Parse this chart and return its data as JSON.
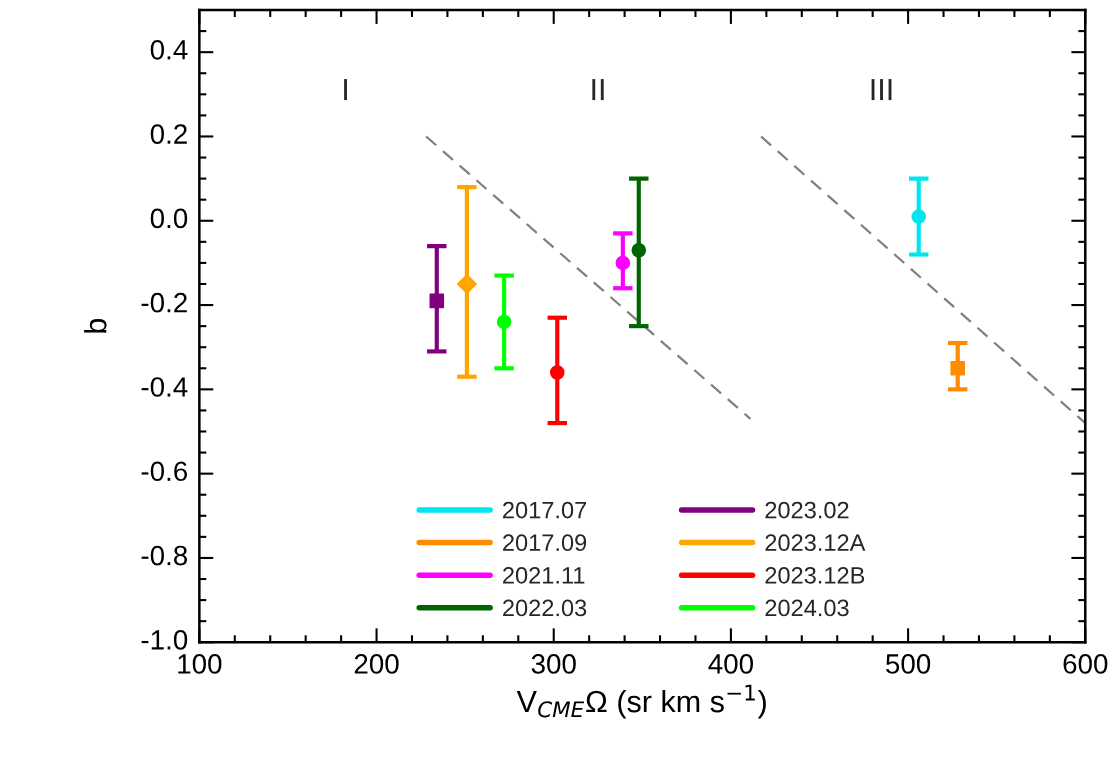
{
  "chart_data": {
    "type": "scatter",
    "xlabel": "V$_{CME}$Ω (sr km s$^{−1}$)",
    "ylabel": "b",
    "xlim": [
      100,
      600
    ],
    "xticks": [
      100,
      {
        "value": 120,
        "label": null
      },
      {
        "value": 140,
        "label": null
      },
      {
        "value": 160,
        "label": null
      },
      {
        "value": 180,
        "label": null
      },
      200,
      {
        "value": 220,
        "label": null
      },
      {
        "value": 240,
        "label": null
      },
      {
        "value": 260,
        "label": null
      },
      {
        "value": 280,
        "label": null
      },
      300,
      {
        "value": 320,
        "label": null
      },
      {
        "value": 340,
        "label": null
      },
      {
        "value": 360,
        "label": null
      },
      {
        "value": 380,
        "label": null
      },
      400,
      {
        "value": 420,
        "label": null
      },
      {
        "value": 440,
        "label": null
      },
      {
        "value": 460,
        "label": null
      },
      {
        "value": 480,
        "label": null
      },
      500,
      {
        "value": 520,
        "label": null
      },
      {
        "value": 540,
        "label": null
      },
      {
        "value": 560,
        "label": null
      },
      {
        "value": 580,
        "label": null
      },
      600
    ],
    "ylim": [
      -1.0,
      0.5
    ],
    "yticks": [
      {
        "value": 0.5,
        "label": null
      },
      {
        "value": 0.45,
        "label": null
      },
      {
        "value": 0.4,
        "label": "0.4"
      },
      {
        "value": 0.35,
        "label": null
      },
      {
        "value": 0.3,
        "label": null
      },
      {
        "value": 0.25,
        "label": null
      },
      {
        "value": 0.2,
        "label": "0.2"
      },
      {
        "value": 0.15,
        "label": null
      },
      {
        "value": 0.1,
        "label": null
      },
      {
        "value": 0.05,
        "label": null
      },
      {
        "value": 0.0,
        "label": "0.0"
      },
      {
        "value": -0.05,
        "label": null
      },
      {
        "value": -0.1,
        "label": null
      },
      {
        "value": -0.15,
        "label": null
      },
      {
        "value": -0.2,
        "label": "-0.2"
      },
      {
        "value": -0.25,
        "label": null
      },
      {
        "value": -0.3,
        "label": null
      },
      {
        "value": -0.35,
        "label": null
      },
      {
        "value": -0.4,
        "label": "-0.4"
      },
      {
        "value": -0.45,
        "label": null
      },
      {
        "value": -0.5,
        "label": null
      },
      {
        "value": -0.55,
        "label": null
      },
      {
        "value": -0.6,
        "label": "-0.6"
      },
      {
        "value": -0.65,
        "label": null
      },
      {
        "value": -0.7,
        "label": null
      },
      {
        "value": -0.75,
        "label": null
      },
      {
        "value": -0.8,
        "label": "-0.8"
      },
      {
        "value": -0.85,
        "label": null
      },
      {
        "value": -0.9,
        "label": null
      },
      {
        "value": -0.95,
        "label": null
      },
      {
        "value": -1.0,
        "label": "-1.0"
      }
    ],
    "legend": "bottom",
    "annotations": [
      "I",
      "II",
      "III"
    ],
    "series": [
      {
        "name": "2017.07",
        "color": "#00e5ee",
        "marker": "circle",
        "x": [
          506
        ],
        "values": [
          0.01
        ],
        "errors": [
          [
            -0.08,
            0.1
          ]
        ]
      },
      {
        "name": "2017.09",
        "color": "#ff8c00",
        "marker": "square",
        "x": [
          528
        ],
        "values": [
          -0.35
        ],
        "errors": [
          [
            -0.4,
            -0.29
          ]
        ]
      },
      {
        "name": "2021.11",
        "color": "#ff00ff",
        "marker": "circle",
        "x": [
          339
        ],
        "values": [
          -0.1
        ],
        "errors": [
          [
            -0.16,
            -0.03
          ]
        ]
      },
      {
        "name": "2022.03",
        "color": "#006400",
        "marker": "circle",
        "x": [
          348
        ],
        "values": [
          -0.07
        ],
        "errors": [
          [
            -0.25,
            0.1
          ]
        ]
      },
      {
        "name": "2023.02",
        "color": "#800080",
        "marker": "square",
        "x": [
          234
        ],
        "values": [
          -0.19
        ],
        "errors": [
          [
            -0.31,
            -0.06
          ]
        ]
      },
      {
        "name": "2023.12A",
        "color": "#ffa500",
        "marker": "diamond",
        "x": [
          251
        ],
        "values": [
          -0.15
        ],
        "errors": [
          [
            -0.37,
            0.08
          ]
        ]
      },
      {
        "name": "2023.12B",
        "color": "#ff0000",
        "marker": "circle",
        "x": [
          302
        ],
        "values": [
          -0.36
        ],
        "errors": [
          [
            -0.48,
            -0.23
          ]
        ]
      },
      {
        "name": "2024.03",
        "color": "#00ff00",
        "marker": "circle",
        "x": [
          272
        ],
        "values": [
          -0.24
        ],
        "errors": [
          [
            -0.35,
            -0.13
          ]
        ]
      },
      {
        "type": "line",
        "color": "#808080",
        "line_style": "dashed",
        "marker": "none",
        "x": [
          228,
          411
        ],
        "values": [
          0.2,
          -0.47
        ]
      },
      {
        "type": "line",
        "color": "#808080",
        "line_style": "dashed",
        "marker": "none",
        "x": [
          417,
          600
        ],
        "values": [
          0.2,
          -0.48
        ]
      }
    ]
  }
}
